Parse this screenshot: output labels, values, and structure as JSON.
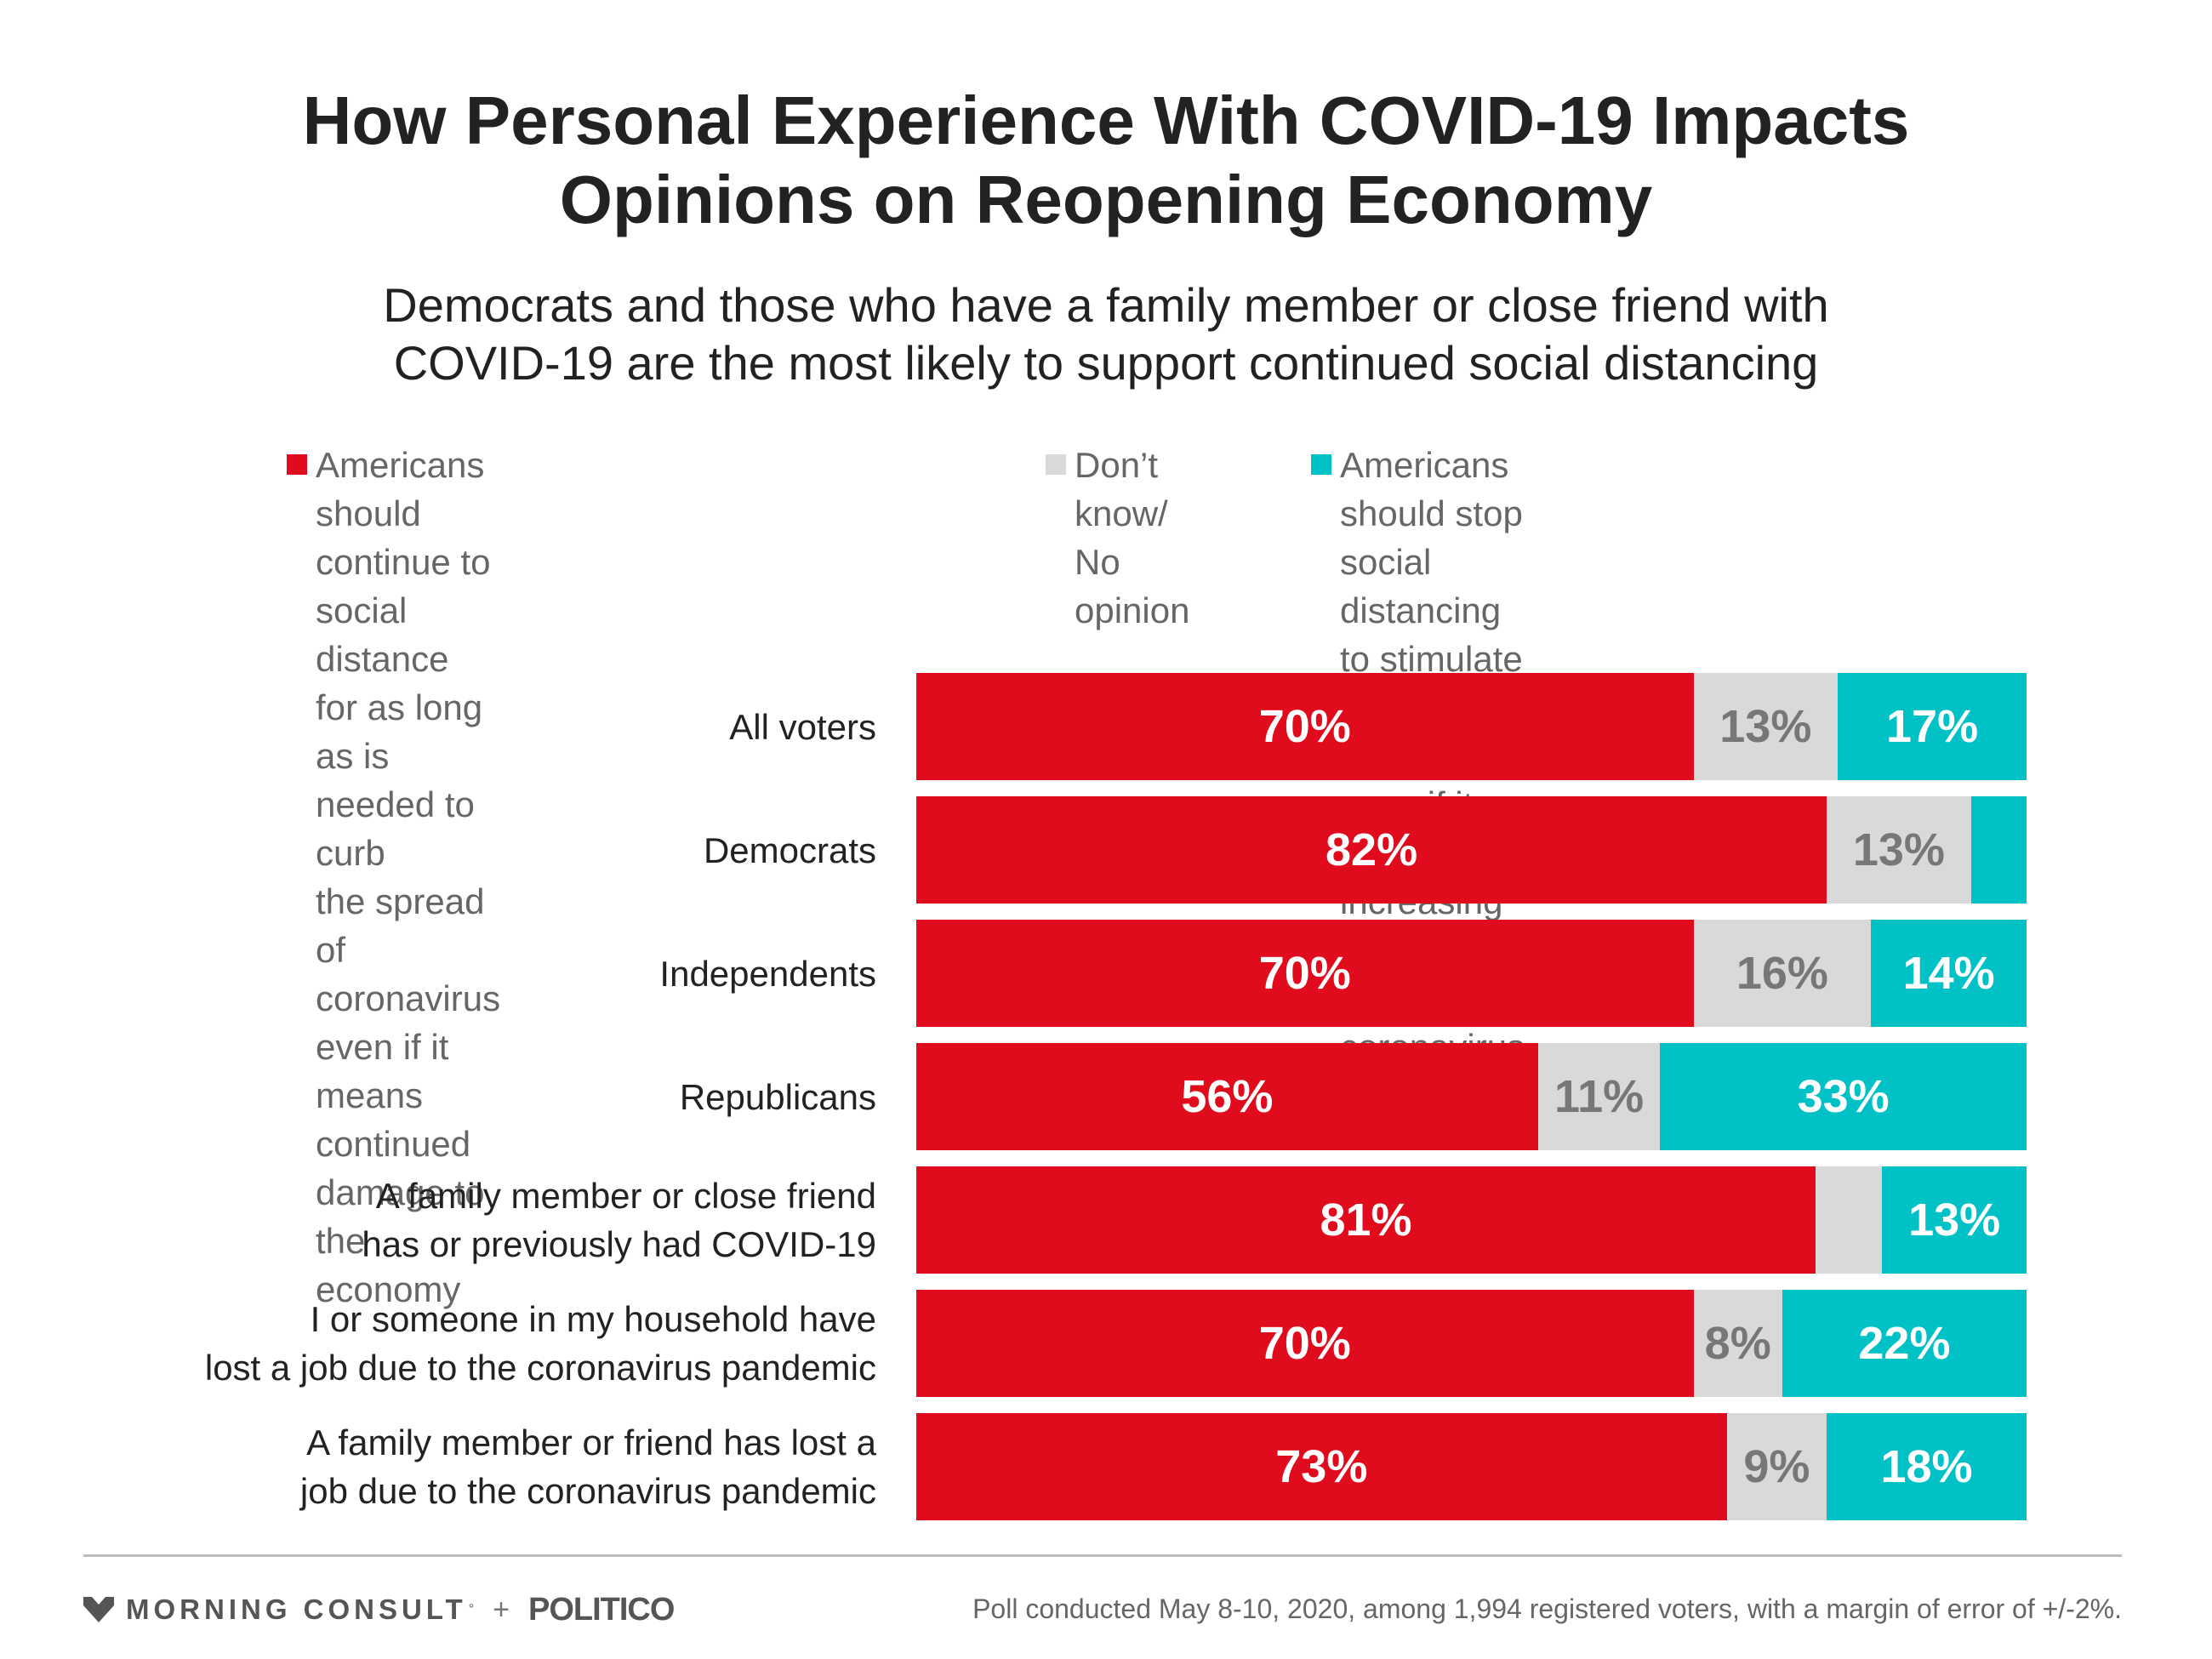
{
  "header": {
    "title_line1": "How Personal Experience With COVID-19 Impacts",
    "title_line2": "Opinions on Reopening Economy",
    "subtitle_line1": "Democrats and those who have a family member or close friend with",
    "subtitle_line2": "COVID-19 are the most likely to support continued social distancing"
  },
  "legend": [
    {
      "key": "continue",
      "text": "Americans should continue to social\ndistance for as long as is needed to curb\nthe spread of coronavirus even if it means\ncontinued damage to the economy",
      "color": "#e00b1c"
    },
    {
      "key": "dont_know",
      "text": "Don’t know/\nNo opinion",
      "color": "#d9d9d9"
    },
    {
      "key": "stop",
      "text": "Americans should stop\nsocial distancing to stimulate\nthe economy even if it means\nincreasing the spread of coronavirus",
      "color": "#00c1c5"
    }
  ],
  "chart_data": {
    "type": "bar",
    "orientation": "horizontal",
    "stacked": true,
    "normalized_percent": true,
    "title": "How Personal Experience With COVID-19 Impacts Opinions on Reopening Economy",
    "subtitle": "Democrats and those who have a family member or close friend with COVID-19 are the most likely to support continued social distancing",
    "xlim": [
      0,
      100
    ],
    "categories": [
      [
        "All voters"
      ],
      [
        "Democrats"
      ],
      [
        "Independents"
      ],
      [
        "Republicans"
      ],
      [
        "A family member or close friend",
        "has or previously had COVID-19"
      ],
      [
        "I or someone in my household have",
        "lost a job due to the coronavirus pandemic"
      ],
      [
        "A family member or friend has lost a",
        "job due to the coronavirus pandemic"
      ]
    ],
    "series": [
      {
        "key": "continue",
        "color": "#e00b1c",
        "label_color": "#ffffff",
        "values": [
          70,
          82,
          70,
          56,
          81,
          70,
          73
        ],
        "labels": [
          "70%",
          "82%",
          "70%",
          "56%",
          "81%",
          "70%",
          "73%"
        ]
      },
      {
        "key": "dont_know",
        "color": "#d9d9d9",
        "label_color": "#777777",
        "values": [
          13,
          13,
          16,
          11,
          6,
          8,
          9
        ],
        "labels": [
          "13%",
          "13%",
          "16%",
          "11%",
          "",
          "8%",
          "9%"
        ]
      },
      {
        "key": "stop",
        "color": "#00c1c5",
        "label_color": "#ffffff",
        "values": [
          17,
          5,
          14,
          33,
          13,
          22,
          18
        ],
        "labels": [
          "17%",
          "",
          "14%",
          "33%",
          "13%",
          "22%",
          "18%"
        ]
      }
    ],
    "legend_position": "top",
    "grid": false
  },
  "footer": {
    "brand_morning_consult": "MORNING CONSULT",
    "brand_registered": "°",
    "brand_plus": "+",
    "brand_politico": "POLITICO",
    "source": "Poll conducted May 8-10, 2020, among 1,994 registered voters, with a margin of error of +/-2%."
  }
}
